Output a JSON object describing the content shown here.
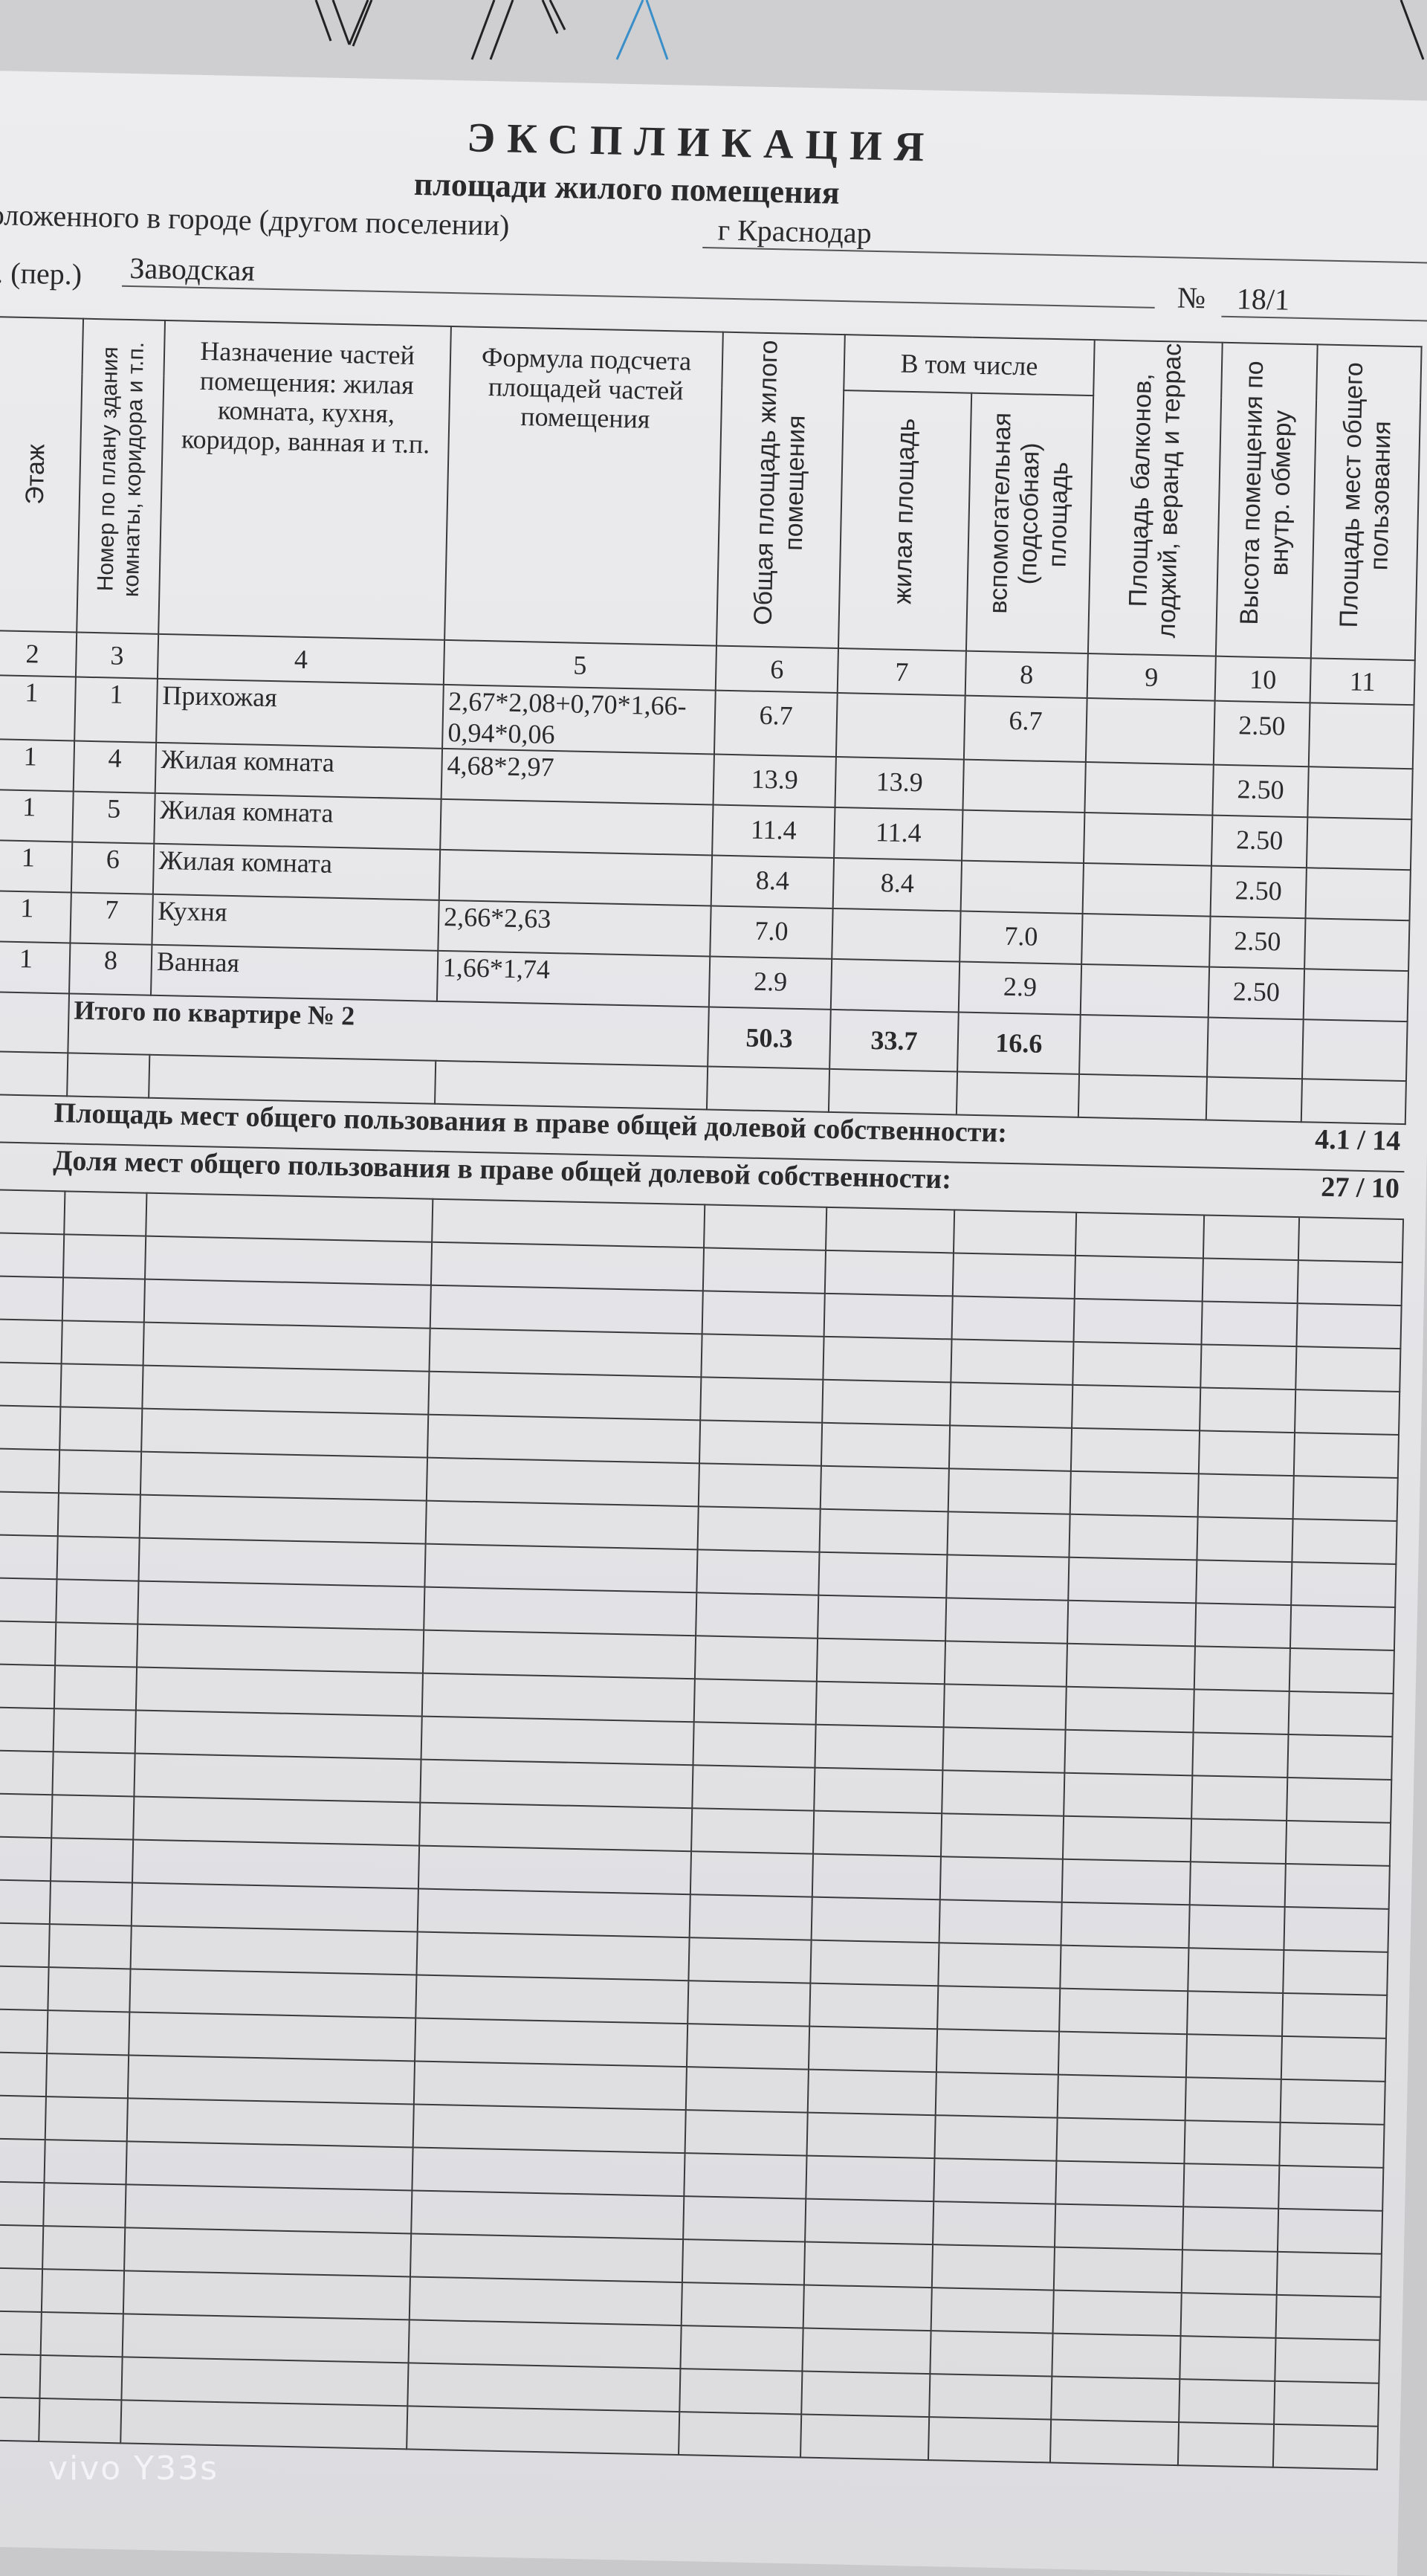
{
  "document": {
    "title": "ЭКСПЛИКАЦИЯ",
    "subtitle": "площади жилого помещения",
    "city_label": "оложенного в городе (другом поселении)",
    "city": "г Краснодар",
    "street_label": ". (пер.)",
    "street": "Заводская",
    "number_label": "№",
    "number": "18/1"
  },
  "table": {
    "headers": {
      "floor": "Этаж",
      "room_no": "Номер по плану здания комнаты, коридора и т.п.",
      "purpose": "Назначение частей помещения: жилая комната, кухня, коридор, ванная и т.п.",
      "formula": "Формула подсчета площадей частей помещения",
      "total_area": "Общая площадь жилого помещения",
      "including": "В том числе",
      "living_area": "жилая площадь",
      "aux_area": "вспомогательная (подсобная) площадь",
      "balcony": "Площадь балконов, лоджий, веранд и террас",
      "height": "Высота помещения по внутр. обмеру",
      "common": "Площадь мест общего пользования"
    },
    "column_numbers": [
      "2",
      "3",
      "4",
      "5",
      "6",
      "7",
      "8",
      "9",
      "10",
      "11"
    ],
    "rows": [
      {
        "floor": "1",
        "no": "1",
        "name": "Прихожая",
        "formula": "2,67*2,08+0,70*1,66-0,94*0,06",
        "total": "6.7",
        "living": "",
        "aux": "6.7",
        "balcony": "",
        "height": "2.50",
        "common": ""
      },
      {
        "floor": "1",
        "no": "4",
        "name": "Жилая комната",
        "formula": "4,68*2,97",
        "total": "13.9",
        "living": "13.9",
        "aux": "",
        "balcony": "",
        "height": "2.50",
        "common": ""
      },
      {
        "floor": "1",
        "no": "5",
        "name": "Жилая комната",
        "formula": "",
        "total": "11.4",
        "living": "11.4",
        "aux": "",
        "balcony": "",
        "height": "2.50",
        "common": ""
      },
      {
        "floor": "1",
        "no": "6",
        "name": "Жилая комната",
        "formula": "",
        "total": "8.4",
        "living": "8.4",
        "aux": "",
        "balcony": "",
        "height": "2.50",
        "common": ""
      },
      {
        "floor": "1",
        "no": "7",
        "name": "Кухня",
        "formula": "2,66*2,63",
        "total": "7.0",
        "living": "",
        "aux": "7.0",
        "balcony": "",
        "height": "2.50",
        "common": ""
      },
      {
        "floor": "1",
        "no": "8",
        "name": "Ванная",
        "formula": "1,66*1,74",
        "total": "2.9",
        "living": "",
        "aux": "2.9",
        "balcony": "",
        "height": "2.50",
        "common": ""
      }
    ],
    "total": {
      "label": "Итого по квартире № 2",
      "total": "50.3",
      "living": "33.7",
      "aux": "16.6"
    },
    "summary": [
      {
        "label": "Площадь мест общего пользования в праве общей долевой собственности:",
        "value": "4.1 / 14"
      },
      {
        "label": "Доля мест общего пользования в праве общей долевой собственности:",
        "value": "27 / 10"
      }
    ]
  },
  "watermark": "vivo Y33s",
  "colors": {
    "paper": "#e8e8eb",
    "ink": "#2a2a2c",
    "pen_blue": "#3a8fc8"
  }
}
